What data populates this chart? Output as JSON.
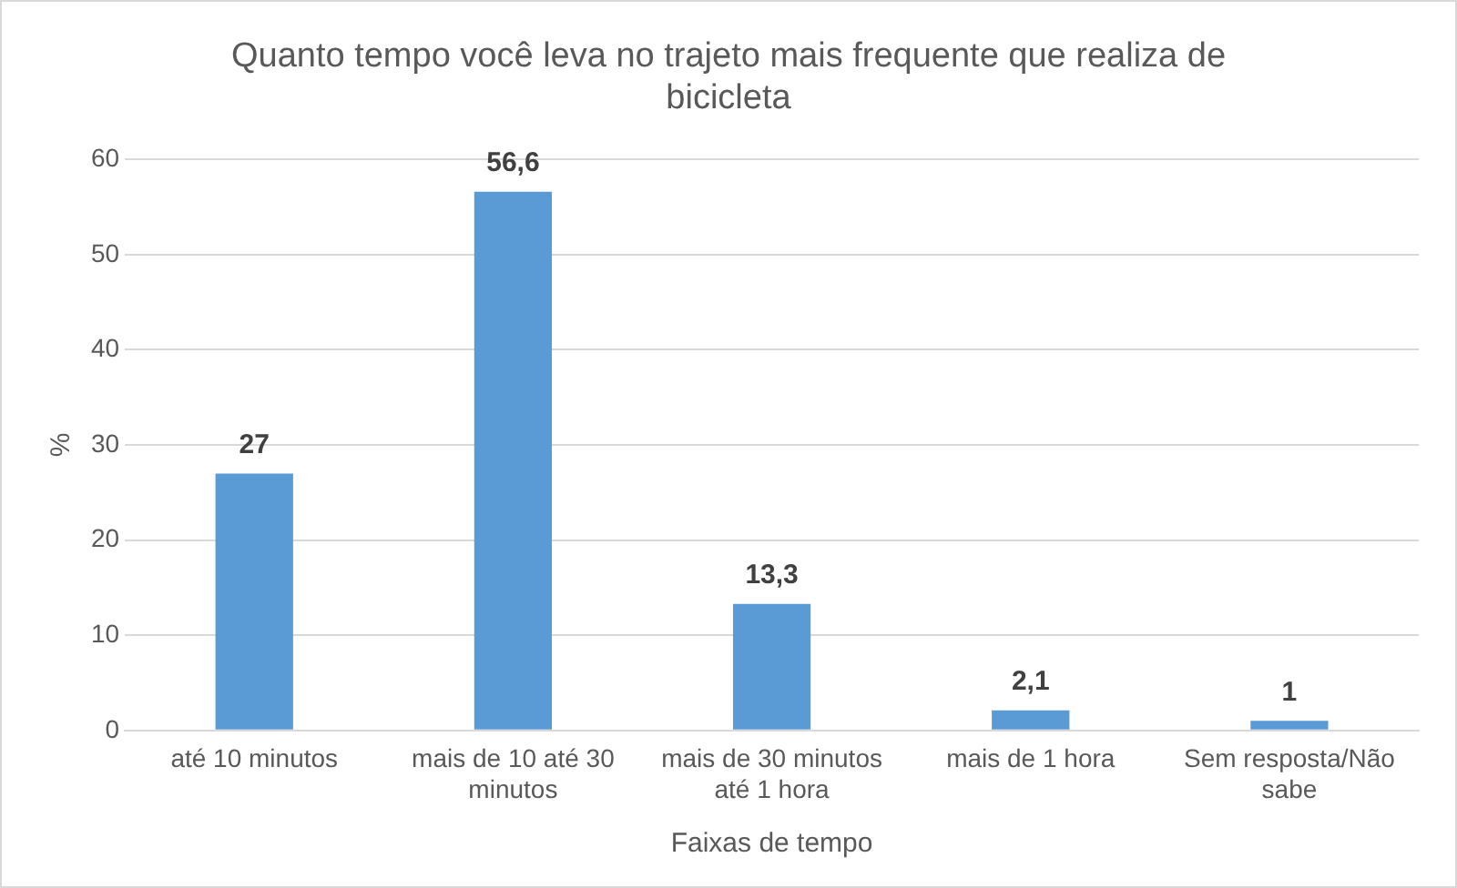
{
  "chart_data": {
    "type": "bar",
    "title": "Quanto tempo você leva no trajeto mais frequente que realiza de bicicleta",
    "xlabel": "Faixas de tempo",
    "ylabel": "%",
    "categories": [
      "até 10 minutos",
      "mais de 10 até 30 minutos",
      "mais de 30 minutos até 1 hora",
      "mais de 1 hora",
      "Sem resposta/Não sabe"
    ],
    "values": [
      27,
      56.6,
      13.3,
      2.1,
      1
    ],
    "value_labels": [
      "27",
      "56,6",
      "13,3",
      "2,1",
      "1"
    ],
    "color": "#5b9bd5",
    "ylim": [
      0,
      60
    ],
    "yticks": [
      0,
      10,
      20,
      30,
      40,
      50,
      60
    ],
    "grid": "y",
    "legend": false
  }
}
